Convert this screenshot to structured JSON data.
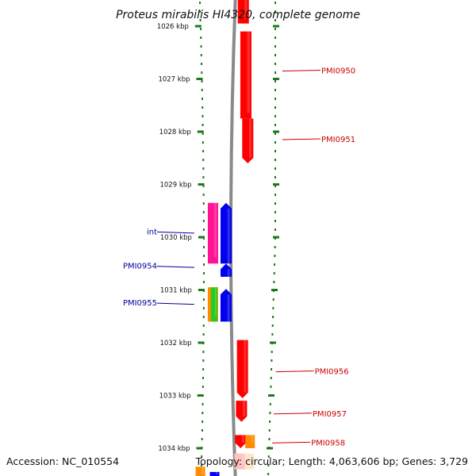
{
  "title": "Proteus mirabilis HI4320, complete genome",
  "footer": {
    "accession": "Accession: NC_010554",
    "stats": "Topology: circular; Length: 4,063,606 bp; Genes: 3,729"
  },
  "colors": {
    "backbone": "#8a8a8a",
    "ticks": "#1a7a1a",
    "forward_label": "#cc0000",
    "reverse_label": "#000099"
  },
  "kbp_ticks": [
    {
      "label": "1026 kbp",
      "kbp": 1026
    },
    {
      "label": "1027 kbp",
      "kbp": 1027
    },
    {
      "label": "1028 kbp",
      "kbp": 1028
    },
    {
      "label": "1029 kbp",
      "kbp": 1029
    },
    {
      "label": "1030 kbp",
      "kbp": 1030
    },
    {
      "label": "1031 kbp",
      "kbp": 1031
    },
    {
      "label": "1032 kbp",
      "kbp": 1032
    },
    {
      "label": "1033 kbp",
      "kbp": 1033
    },
    {
      "label": "1034 kbp",
      "kbp": 1034
    }
  ],
  "gene_labels": [
    {
      "text": "PMI0950",
      "strand": "forward",
      "kbp": 1026.85
    },
    {
      "text": "PMI0951",
      "strand": "forward",
      "kbp": 1028.15
    },
    {
      "text": "int",
      "strand": "reverse",
      "kbp": 1029.9
    },
    {
      "text": "PMI0954",
      "strand": "reverse",
      "kbp": 1030.55
    },
    {
      "text": "PMI0955",
      "strand": "reverse",
      "kbp": 1031.25
    },
    {
      "text": "PMI0956",
      "strand": "forward",
      "kbp": 1032.55
    },
    {
      "text": "PMI0957",
      "strand": "forward",
      "kbp": 1033.35
    },
    {
      "text": "PMI0958",
      "strand": "forward",
      "kbp": 1033.9
    }
  ],
  "features": [
    {
      "name": "PMI0949-feature",
      "color": "#ff0000",
      "track": "fwd-cds",
      "start_kbp": 1025.5,
      "end_kbp": 1025.95,
      "dir": "none"
    },
    {
      "name": "PMI0950-feature",
      "color": "#ff0000",
      "track": "fwd-cds",
      "start_kbp": 1026.1,
      "end_kbp": 1027.75,
      "dir": "none"
    },
    {
      "name": "PMI0951-feature",
      "color": "#ff0000",
      "track": "fwd-cds",
      "start_kbp": 1027.75,
      "end_kbp": 1028.6,
      "dir": "down"
    },
    {
      "name": "int-feature",
      "color": "#0000ee",
      "track": "rev-cds",
      "start_kbp": 1029.35,
      "end_kbp": 1030.5,
      "dir": "up"
    },
    {
      "name": "PMI0954-feature",
      "color": "#0000ee",
      "track": "rev-cds",
      "start_kbp": 1030.5,
      "end_kbp": 1030.75,
      "dir": "up"
    },
    {
      "name": "PMI0955-feature",
      "color": "#0000ee",
      "track": "rev-cds",
      "start_kbp": 1030.98,
      "end_kbp": 1031.6,
      "dir": "up"
    },
    {
      "name": "int-region-feature",
      "color": "#ff1493",
      "track": "rev-region",
      "start_kbp": 1029.35,
      "end_kbp": 1030.5,
      "dir": "none"
    },
    {
      "name": "orange-region-feature",
      "color": "#ff8c00",
      "track": "rev-region",
      "start_kbp": 1030.95,
      "end_kbp": 1031.6,
      "dir": "none"
    },
    {
      "name": "green-region-feature",
      "color": "#22cc22",
      "track": "rev-region-2",
      "start_kbp": 1030.95,
      "end_kbp": 1031.6,
      "dir": "none"
    },
    {
      "name": "PMI0956-feature",
      "color": "#ff0000",
      "track": "fwd-cds",
      "start_kbp": 1031.95,
      "end_kbp": 1033.05,
      "dir": "down"
    },
    {
      "name": "PMI0957-feature",
      "color": "#ff0000",
      "track": "fwd-cds",
      "start_kbp": 1033.1,
      "end_kbp": 1033.5,
      "dir": "down"
    },
    {
      "name": "PMI0958-feature",
      "color": "#ff0000",
      "track": "fwd-cds",
      "start_kbp": 1033.75,
      "end_kbp": 1034.0,
      "dir": "down"
    },
    {
      "name": "orange-fwd-feature",
      "color": "#ff8c00",
      "track": "fwd-region",
      "start_kbp": 1033.75,
      "end_kbp": 1034.0,
      "dir": "none"
    },
    {
      "name": "pink-fwd-feature",
      "color": "#ffc0c0",
      "track": "fwd-cds",
      "start_kbp": 1034.1,
      "end_kbp": 1034.4,
      "dir": "none"
    },
    {
      "name": "peach-fwd-feature",
      "color": "#ffe4cc",
      "track": "fwd-region",
      "start_kbp": 1034.1,
      "end_kbp": 1034.4,
      "dir": "none"
    },
    {
      "name": "orange-rev-feature",
      "color": "#ff8c00",
      "track": "rev-region-far",
      "start_kbp": 1034.35,
      "end_kbp": 1034.6,
      "dir": "none"
    },
    {
      "name": "blue-rev-feature",
      "color": "#0000ee",
      "track": "rev-cds-far",
      "start_kbp": 1034.45,
      "end_kbp": 1034.6,
      "dir": "none"
    }
  ]
}
